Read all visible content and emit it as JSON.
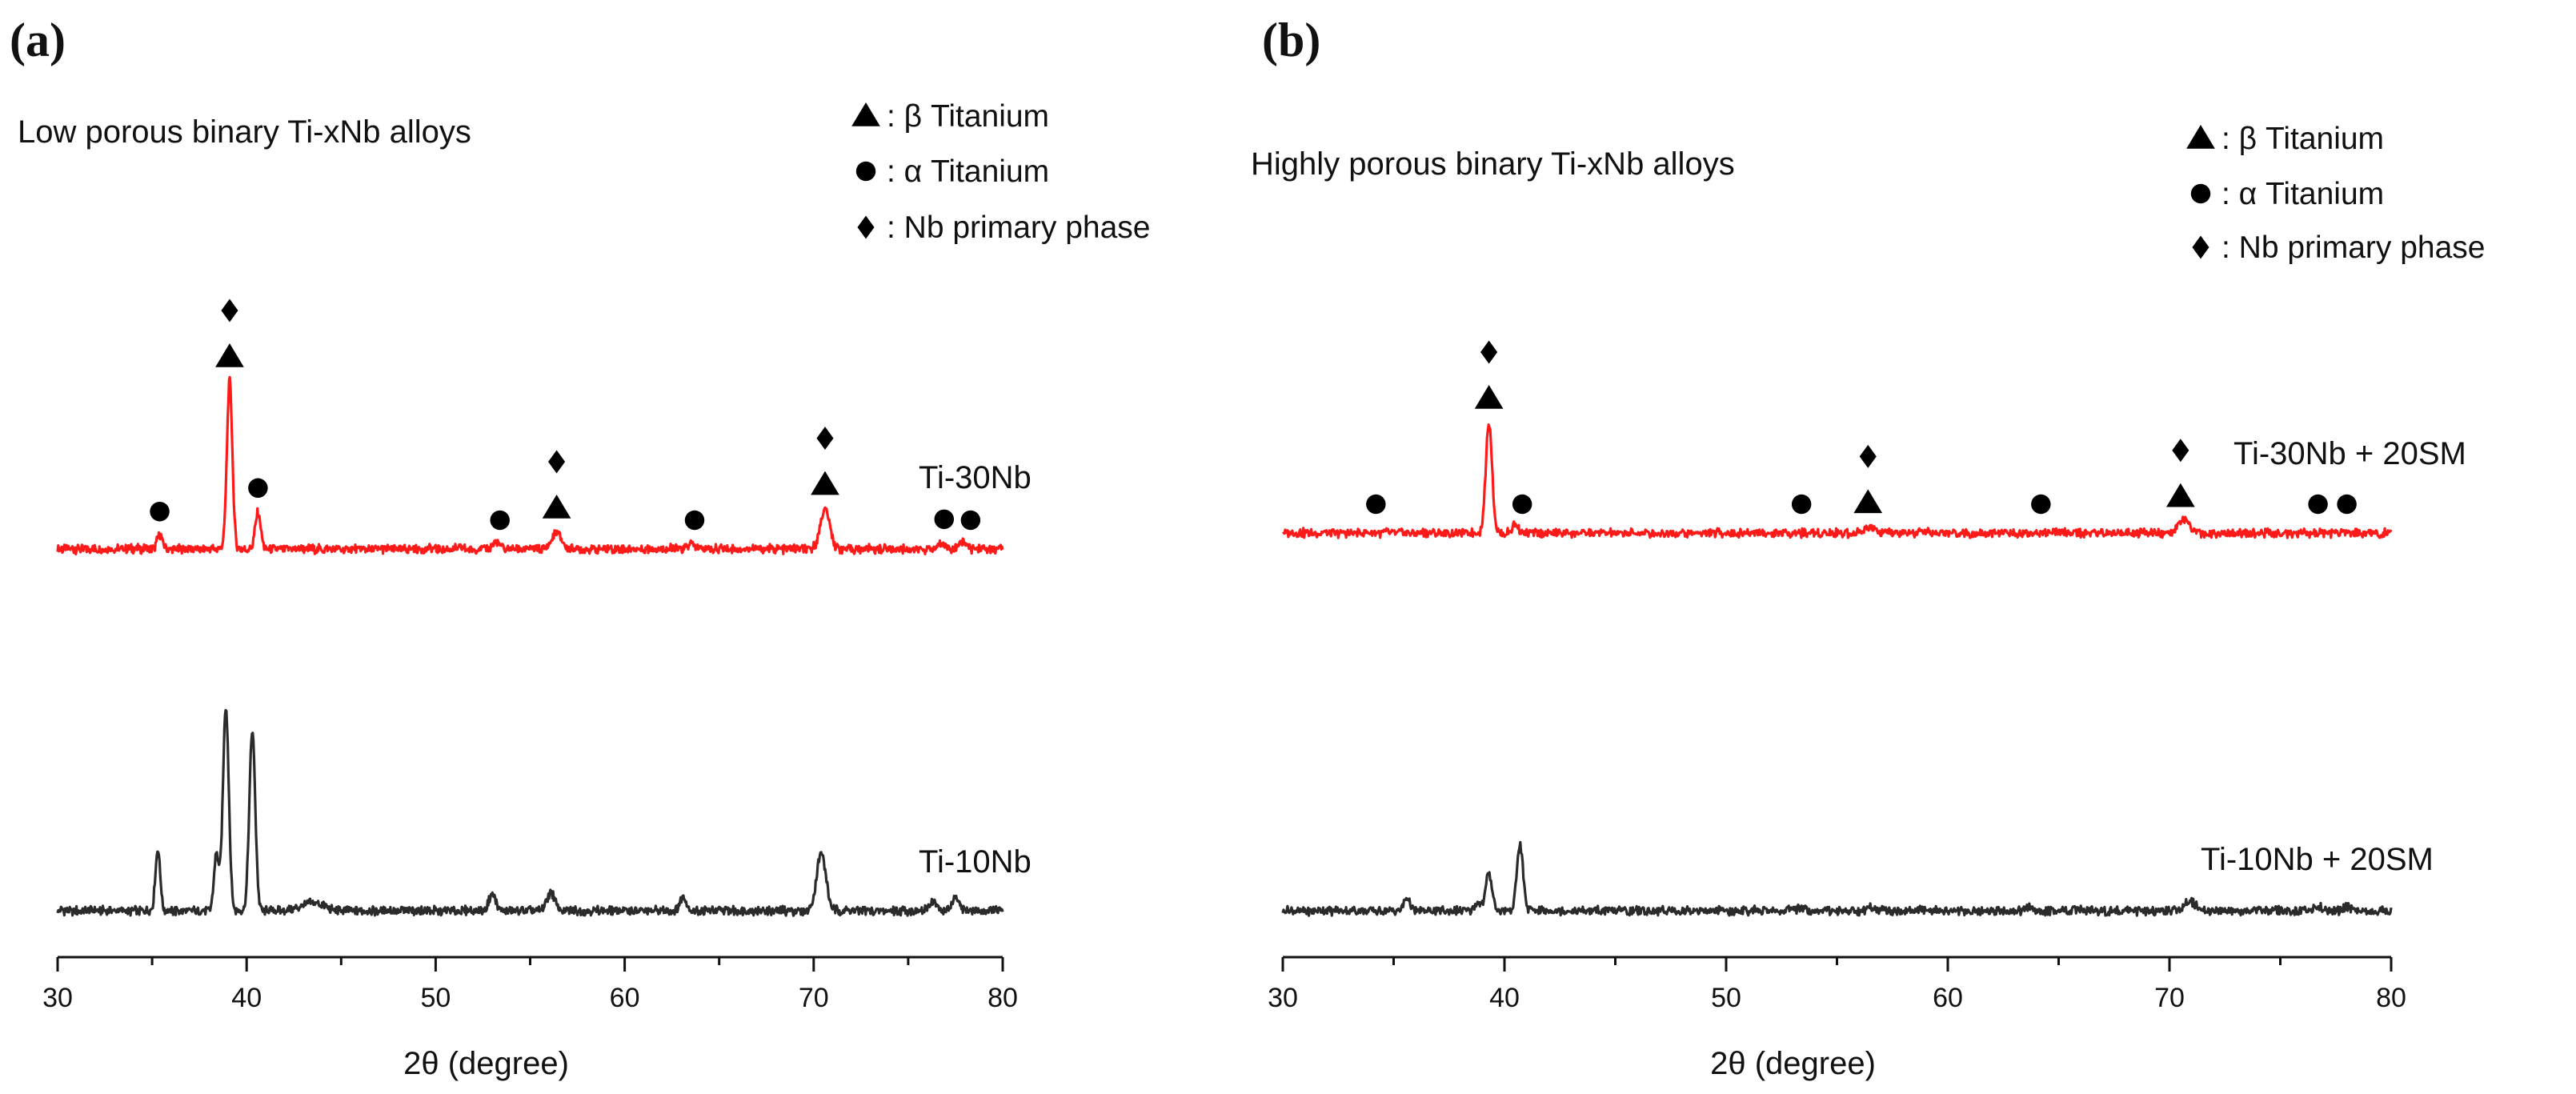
{
  "chart_data": [
    {
      "type": "line",
      "panel_label": "(a)",
      "title": "Low porous binary Ti-xNb alloys",
      "xlabel": "2θ (degree)",
      "ylabel": "",
      "xlim": [
        30,
        80
      ],
      "xticks": [
        30,
        40,
        50,
        60,
        70,
        80
      ],
      "yticks": false,
      "grid": false,
      "legend": {
        "position": "top-right",
        "entries": [
          {
            "marker": "triangle",
            "label": ": β Titanium"
          },
          {
            "marker": "circle",
            "label": ": α Titanium"
          },
          {
            "marker": "diamond",
            "label": ": Nb primary phase"
          }
        ]
      },
      "series": [
        {
          "name": "Ti-30Nb",
          "color": "#ff1a1a",
          "baseline": 0,
          "peaks": [
            {
              "x": 35.4,
              "h": 8,
              "w": 0.2
            },
            {
              "x": 39.1,
              "h": 100,
              "w": 0.2
            },
            {
              "x": 40.6,
              "h": 22,
              "w": 0.2
            },
            {
              "x": 53.2,
              "h": 4,
              "w": 0.25
            },
            {
              "x": 56.4,
              "h": 10,
              "w": 0.35
            },
            {
              "x": 63.5,
              "h": 3,
              "w": 0.25
            },
            {
              "x": 70.6,
              "h": 24,
              "w": 0.35
            },
            {
              "x": 76.8,
              "h": 4,
              "w": 0.25
            },
            {
              "x": 77.9,
              "h": 5,
              "w": 0.25
            }
          ],
          "annotations": [
            {
              "x": 35.4,
              "marks": [
                "circle"
              ]
            },
            {
              "x": 39.1,
              "marks": [
                "triangle",
                "diamond"
              ]
            },
            {
              "x": 40.6,
              "marks": [
                "circle"
              ]
            },
            {
              "x": 53.4,
              "marks": [
                "circle"
              ]
            },
            {
              "x": 56.4,
              "marks": [
                "triangle",
                "diamond"
              ]
            },
            {
              "x": 63.7,
              "marks": [
                "circle"
              ]
            },
            {
              "x": 70.6,
              "marks": [
                "triangle",
                "diamond"
              ]
            },
            {
              "x": 76.9,
              "marks": [
                "circle"
              ]
            },
            {
              "x": 78.3,
              "marks": [
                "circle"
              ]
            }
          ]
        },
        {
          "name": "Ti-10Nb",
          "color": "#2b2b2b",
          "baseline": 0,
          "peaks": [
            {
              "x": 35.3,
              "h": 30,
              "w": 0.18
            },
            {
              "x": 38.4,
              "h": 28,
              "w": 0.18
            },
            {
              "x": 38.9,
              "h": 100,
              "w": 0.22
            },
            {
              "x": 40.3,
              "h": 88,
              "w": 0.22
            },
            {
              "x": 43.5,
              "h": 4,
              "w": 0.8
            },
            {
              "x": 53.0,
              "h": 8,
              "w": 0.25
            },
            {
              "x": 56.1,
              "h": 9,
              "w": 0.3
            },
            {
              "x": 63.1,
              "h": 7,
              "w": 0.25
            },
            {
              "x": 70.4,
              "h": 28,
              "w": 0.35
            },
            {
              "x": 76.3,
              "h": 5,
              "w": 0.25
            },
            {
              "x": 77.5,
              "h": 6,
              "w": 0.25
            }
          ]
        }
      ]
    },
    {
      "type": "line",
      "panel_label": "(b)",
      "title": "Highly porous binary Ti-xNb alloys",
      "xlabel": "2θ  (degree)",
      "ylabel": "",
      "xlim": [
        30,
        80
      ],
      "xticks": [
        30,
        40,
        50,
        60,
        70,
        80
      ],
      "yticks": false,
      "grid": false,
      "legend": {
        "position": "top-right",
        "entries": [
          {
            "marker": "triangle",
            "label": ": β Titanium"
          },
          {
            "marker": "circle",
            "label": ": α Titanium"
          },
          {
            "marker": "diamond",
            "label": ": Nb primary phase"
          }
        ]
      },
      "series": [
        {
          "name": "Ti-30Nb + 20SM",
          "color": "#ff1a1a",
          "baseline": 0,
          "peaks": [
            {
              "x": 39.3,
              "h": 100,
              "w": 0.2
            },
            {
              "x": 40.5,
              "h": 8,
              "w": 0.2
            },
            {
              "x": 56.5,
              "h": 6,
              "w": 0.35
            },
            {
              "x": 70.6,
              "h": 12,
              "w": 0.35
            },
            {
              "x": 77.9,
              "h": 2,
              "w": 0.25
            }
          ],
          "annotations": [
            {
              "x": 34.2,
              "marks": [
                "circle"
              ]
            },
            {
              "x": 39.3,
              "marks": [
                "triangle",
                "diamond"
              ]
            },
            {
              "x": 40.8,
              "marks": [
                "circle"
              ]
            },
            {
              "x": 53.4,
              "marks": [
                "circle"
              ]
            },
            {
              "x": 56.4,
              "marks": [
                "triangle",
                "diamond"
              ]
            },
            {
              "x": 64.2,
              "marks": [
                "circle"
              ]
            },
            {
              "x": 70.5,
              "marks": [
                "triangle",
                "diamond"
              ]
            },
            {
              "x": 76.7,
              "marks": [
                "circle"
              ]
            },
            {
              "x": 78.0,
              "marks": [
                "circle"
              ]
            }
          ]
        },
        {
          "name": "Ti-10Nb + 20SM",
          "color": "#2b2b2b",
          "baseline": 0,
          "peaks": [
            {
              "x": 35.6,
              "h": 18,
              "w": 0.18
            },
            {
              "x": 38.8,
              "h": 12,
              "w": 0.18
            },
            {
              "x": 39.3,
              "h": 50,
              "w": 0.2
            },
            {
              "x": 40.7,
              "h": 86,
              "w": 0.2
            },
            {
              "x": 53.4,
              "h": 5,
              "w": 0.25
            },
            {
              "x": 56.6,
              "h": 5,
              "w": 0.3
            },
            {
              "x": 63.6,
              "h": 4,
              "w": 0.25
            },
            {
              "x": 70.9,
              "h": 14,
              "w": 0.35
            },
            {
              "x": 76.7,
              "h": 5,
              "w": 0.25
            },
            {
              "x": 78.0,
              "h": 5,
              "w": 0.25
            }
          ]
        }
      ]
    }
  ]
}
